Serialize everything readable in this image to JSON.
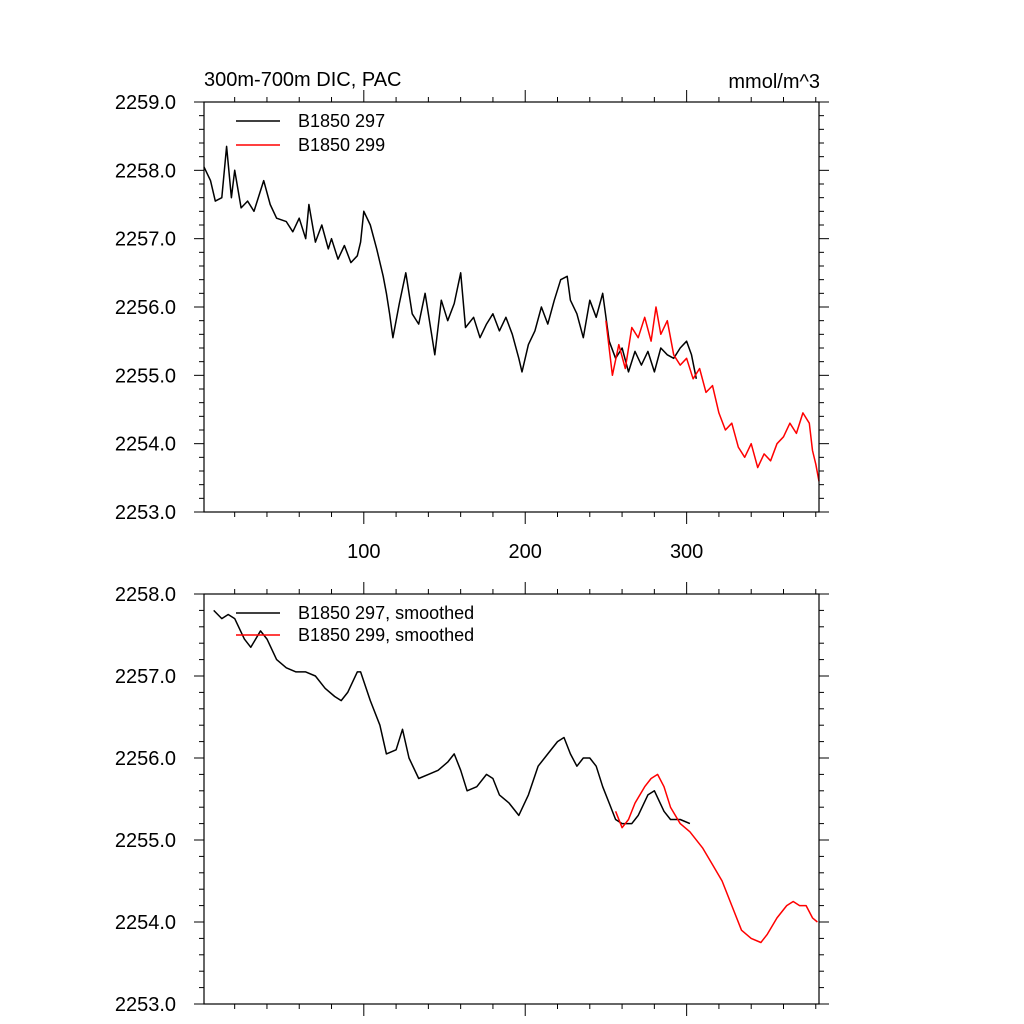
{
  "chart_data": [
    {
      "type": "line",
      "title_left": "300m-700m DIC, PAC",
      "title_right": "mmol/m^3",
      "xlabel": "",
      "ylabel": "",
      "xlim": [
        1,
        382
      ],
      "ylim": [
        2253.0,
        2259.0
      ],
      "yticks": [
        "2253.0",
        "2254.0",
        "2255.0",
        "2256.0",
        "2257.0",
        "2258.0",
        "2259.0"
      ],
      "xticks": [
        "100",
        "200",
        "300"
      ],
      "legend_position": "top-left",
      "series": [
        {
          "name": "B1850 297",
          "color": "#000000",
          "points": [
            [
              1,
              2258.05
            ],
            [
              5,
              2257.85
            ],
            [
              8,
              2257.55
            ],
            [
              12,
              2257.6
            ],
            [
              15,
              2258.35
            ],
            [
              18,
              2257.6
            ],
            [
              20,
              2258.0
            ],
            [
              24,
              2257.45
            ],
            [
              28,
              2257.55
            ],
            [
              32,
              2257.4
            ],
            [
              38,
              2257.85
            ],
            [
              42,
              2257.5
            ],
            [
              46,
              2257.3
            ],
            [
              52,
              2257.25
            ],
            [
              56,
              2257.1
            ],
            [
              60,
              2257.3
            ],
            [
              64,
              2257.0
            ],
            [
              66,
              2257.5
            ],
            [
              70,
              2256.95
            ],
            [
              74,
              2257.2
            ],
            [
              78,
              2256.85
            ],
            [
              80,
              2257.0
            ],
            [
              84,
              2256.7
            ],
            [
              88,
              2256.9
            ],
            [
              92,
              2256.65
            ],
            [
              96,
              2256.75
            ],
            [
              98,
              2256.95
            ],
            [
              100,
              2257.4
            ],
            [
              104,
              2257.2
            ],
            [
              108,
              2256.85
            ],
            [
              112,
              2256.45
            ],
            [
              114,
              2256.2
            ],
            [
              116,
              2255.9
            ],
            [
              118,
              2255.55
            ],
            [
              122,
              2256.05
            ],
            [
              126,
              2256.5
            ],
            [
              130,
              2255.9
            ],
            [
              134,
              2255.75
            ],
            [
              138,
              2256.2
            ],
            [
              142,
              2255.6
            ],
            [
              144,
              2255.3
            ],
            [
              148,
              2256.1
            ],
            [
              152,
              2255.8
            ],
            [
              156,
              2256.05
            ],
            [
              160,
              2256.5
            ],
            [
              163,
              2255.7
            ],
            [
              168,
              2255.85
            ],
            [
              172,
              2255.55
            ],
            [
              176,
              2255.75
            ],
            [
              180,
              2255.9
            ],
            [
              184,
              2255.65
            ],
            [
              188,
              2255.85
            ],
            [
              192,
              2255.6
            ],
            [
              196,
              2255.25
            ],
            [
              198,
              2255.05
            ],
            [
              202,
              2255.45
            ],
            [
              206,
              2255.65
            ],
            [
              210,
              2256.0
            ],
            [
              214,
              2255.75
            ],
            [
              218,
              2256.1
            ],
            [
              222,
              2256.4
            ],
            [
              226,
              2256.45
            ],
            [
              228,
              2256.1
            ],
            [
              232,
              2255.9
            ],
            [
              236,
              2255.55
            ],
            [
              240,
              2256.1
            ],
            [
              244,
              2255.85
            ],
            [
              248,
              2256.2
            ],
            [
              252,
              2255.5
            ],
            [
              256,
              2255.25
            ],
            [
              260,
              2255.4
            ],
            [
              264,
              2255.05
            ],
            [
              268,
              2255.35
            ],
            [
              272,
              2255.15
            ],
            [
              276,
              2255.35
            ],
            [
              280,
              2255.05
            ],
            [
              284,
              2255.4
            ],
            [
              288,
              2255.3
            ],
            [
              292,
              2255.25
            ],
            [
              296,
              2255.4
            ],
            [
              300,
              2255.5
            ],
            [
              303,
              2255.3
            ],
            [
              306,
              2254.95
            ]
          ]
        },
        {
          "name": "B1850 299",
          "color": "#ff0000",
          "points": [
            [
              250,
              2255.8
            ],
            [
              254,
              2255.0
            ],
            [
              258,
              2255.45
            ],
            [
              262,
              2255.1
            ],
            [
              266,
              2255.7
            ],
            [
              270,
              2255.55
            ],
            [
              274,
              2255.85
            ],
            [
              278,
              2255.5
            ],
            [
              281,
              2256.0
            ],
            [
              284,
              2255.6
            ],
            [
              288,
              2255.8
            ],
            [
              292,
              2255.3
            ],
            [
              296,
              2255.15
            ],
            [
              300,
              2255.25
            ],
            [
              304,
              2254.95
            ],
            [
              308,
              2255.1
            ],
            [
              312,
              2254.75
            ],
            [
              316,
              2254.85
            ],
            [
              320,
              2254.45
            ],
            [
              324,
              2254.2
            ],
            [
              328,
              2254.3
            ],
            [
              332,
              2253.95
            ],
            [
              336,
              2253.8
            ],
            [
              340,
              2254.0
            ],
            [
              344,
              2253.65
            ],
            [
              348,
              2253.85
            ],
            [
              352,
              2253.75
            ],
            [
              356,
              2254.0
            ],
            [
              360,
              2254.1
            ],
            [
              364,
              2254.3
            ],
            [
              368,
              2254.15
            ],
            [
              372,
              2254.45
            ],
            [
              376,
              2254.3
            ],
            [
              378,
              2253.9
            ],
            [
              380,
              2253.7
            ],
            [
              382,
              2253.45
            ]
          ]
        }
      ]
    },
    {
      "type": "line",
      "title_left": "",
      "title_right": "",
      "xlabel": "",
      "ylabel": "",
      "xlim": [
        1,
        382
      ],
      "ylim": [
        2253.0,
        2258.0
      ],
      "yticks": [
        "2253.0",
        "2254.0",
        "2255.0",
        "2256.0",
        "2257.0",
        "2258.0"
      ],
      "xticks": [],
      "legend_position": "top-left",
      "series": [
        {
          "name": "B1850 297, smoothed",
          "color": "#000000",
          "points": [
            [
              7,
              2257.8
            ],
            [
              12,
              2257.7
            ],
            [
              16,
              2257.75
            ],
            [
              20,
              2257.7
            ],
            [
              26,
              2257.45
            ],
            [
              30,
              2257.35
            ],
            [
              36,
              2257.55
            ],
            [
              40,
              2257.45
            ],
            [
              46,
              2257.2
            ],
            [
              52,
              2257.1
            ],
            [
              58,
              2257.05
            ],
            [
              64,
              2257.05
            ],
            [
              70,
              2257.0
            ],
            [
              76,
              2256.85
            ],
            [
              82,
              2256.75
            ],
            [
              86,
              2256.7
            ],
            [
              90,
              2256.8
            ],
            [
              96,
              2257.05
            ],
            [
              98,
              2257.05
            ],
            [
              104,
              2256.7
            ],
            [
              110,
              2256.4
            ],
            [
              114,
              2256.05
            ],
            [
              120,
              2256.1
            ],
            [
              124,
              2256.35
            ],
            [
              128,
              2256.0
            ],
            [
              134,
              2255.75
            ],
            [
              140,
              2255.8
            ],
            [
              146,
              2255.85
            ],
            [
              152,
              2255.95
            ],
            [
              156,
              2256.05
            ],
            [
              160,
              2255.85
            ],
            [
              164,
              2255.6
            ],
            [
              170,
              2255.65
            ],
            [
              176,
              2255.8
            ],
            [
              180,
              2255.75
            ],
            [
              184,
              2255.55
            ],
            [
              190,
              2255.45
            ],
            [
              196,
              2255.3
            ],
            [
              202,
              2255.55
            ],
            [
              208,
              2255.9
            ],
            [
              214,
              2256.05
            ],
            [
              220,
              2256.2
            ],
            [
              224,
              2256.25
            ],
            [
              228,
              2256.05
            ],
            [
              232,
              2255.9
            ],
            [
              236,
              2256.0
            ],
            [
              240,
              2256.0
            ],
            [
              244,
              2255.9
            ],
            [
              248,
              2255.65
            ],
            [
              252,
              2255.45
            ],
            [
              256,
              2255.25
            ],
            [
              260,
              2255.2
            ],
            [
              266,
              2255.2
            ],
            [
              270,
              2255.3
            ],
            [
              276,
              2255.55
            ],
            [
              280,
              2255.6
            ],
            [
              286,
              2255.35
            ],
            [
              290,
              2255.25
            ],
            [
              296,
              2255.25
            ],
            [
              302,
              2255.2
            ]
          ]
        },
        {
          "name": "B1850 299, smoothed",
          "color": "#ff0000",
          "points": [
            [
              256,
              2255.35
            ],
            [
              260,
              2255.15
            ],
            [
              264,
              2255.25
            ],
            [
              268,
              2255.45
            ],
            [
              274,
              2255.65
            ],
            [
              278,
              2255.75
            ],
            [
              282,
              2255.8
            ],
            [
              286,
              2255.65
            ],
            [
              290,
              2255.4
            ],
            [
              296,
              2255.2
            ],
            [
              302,
              2255.1
            ],
            [
              310,
              2254.9
            ],
            [
              316,
              2254.7
            ],
            [
              322,
              2254.5
            ],
            [
              328,
              2254.2
            ],
            [
              334,
              2253.9
            ],
            [
              340,
              2253.8
            ],
            [
              346,
              2253.75
            ],
            [
              350,
              2253.85
            ],
            [
              356,
              2254.05
            ],
            [
              362,
              2254.2
            ],
            [
              366,
              2254.25
            ],
            [
              370,
              2254.2
            ],
            [
              374,
              2254.2
            ],
            [
              378,
              2254.05
            ],
            [
              381,
              2254.0
            ]
          ]
        }
      ]
    }
  ]
}
